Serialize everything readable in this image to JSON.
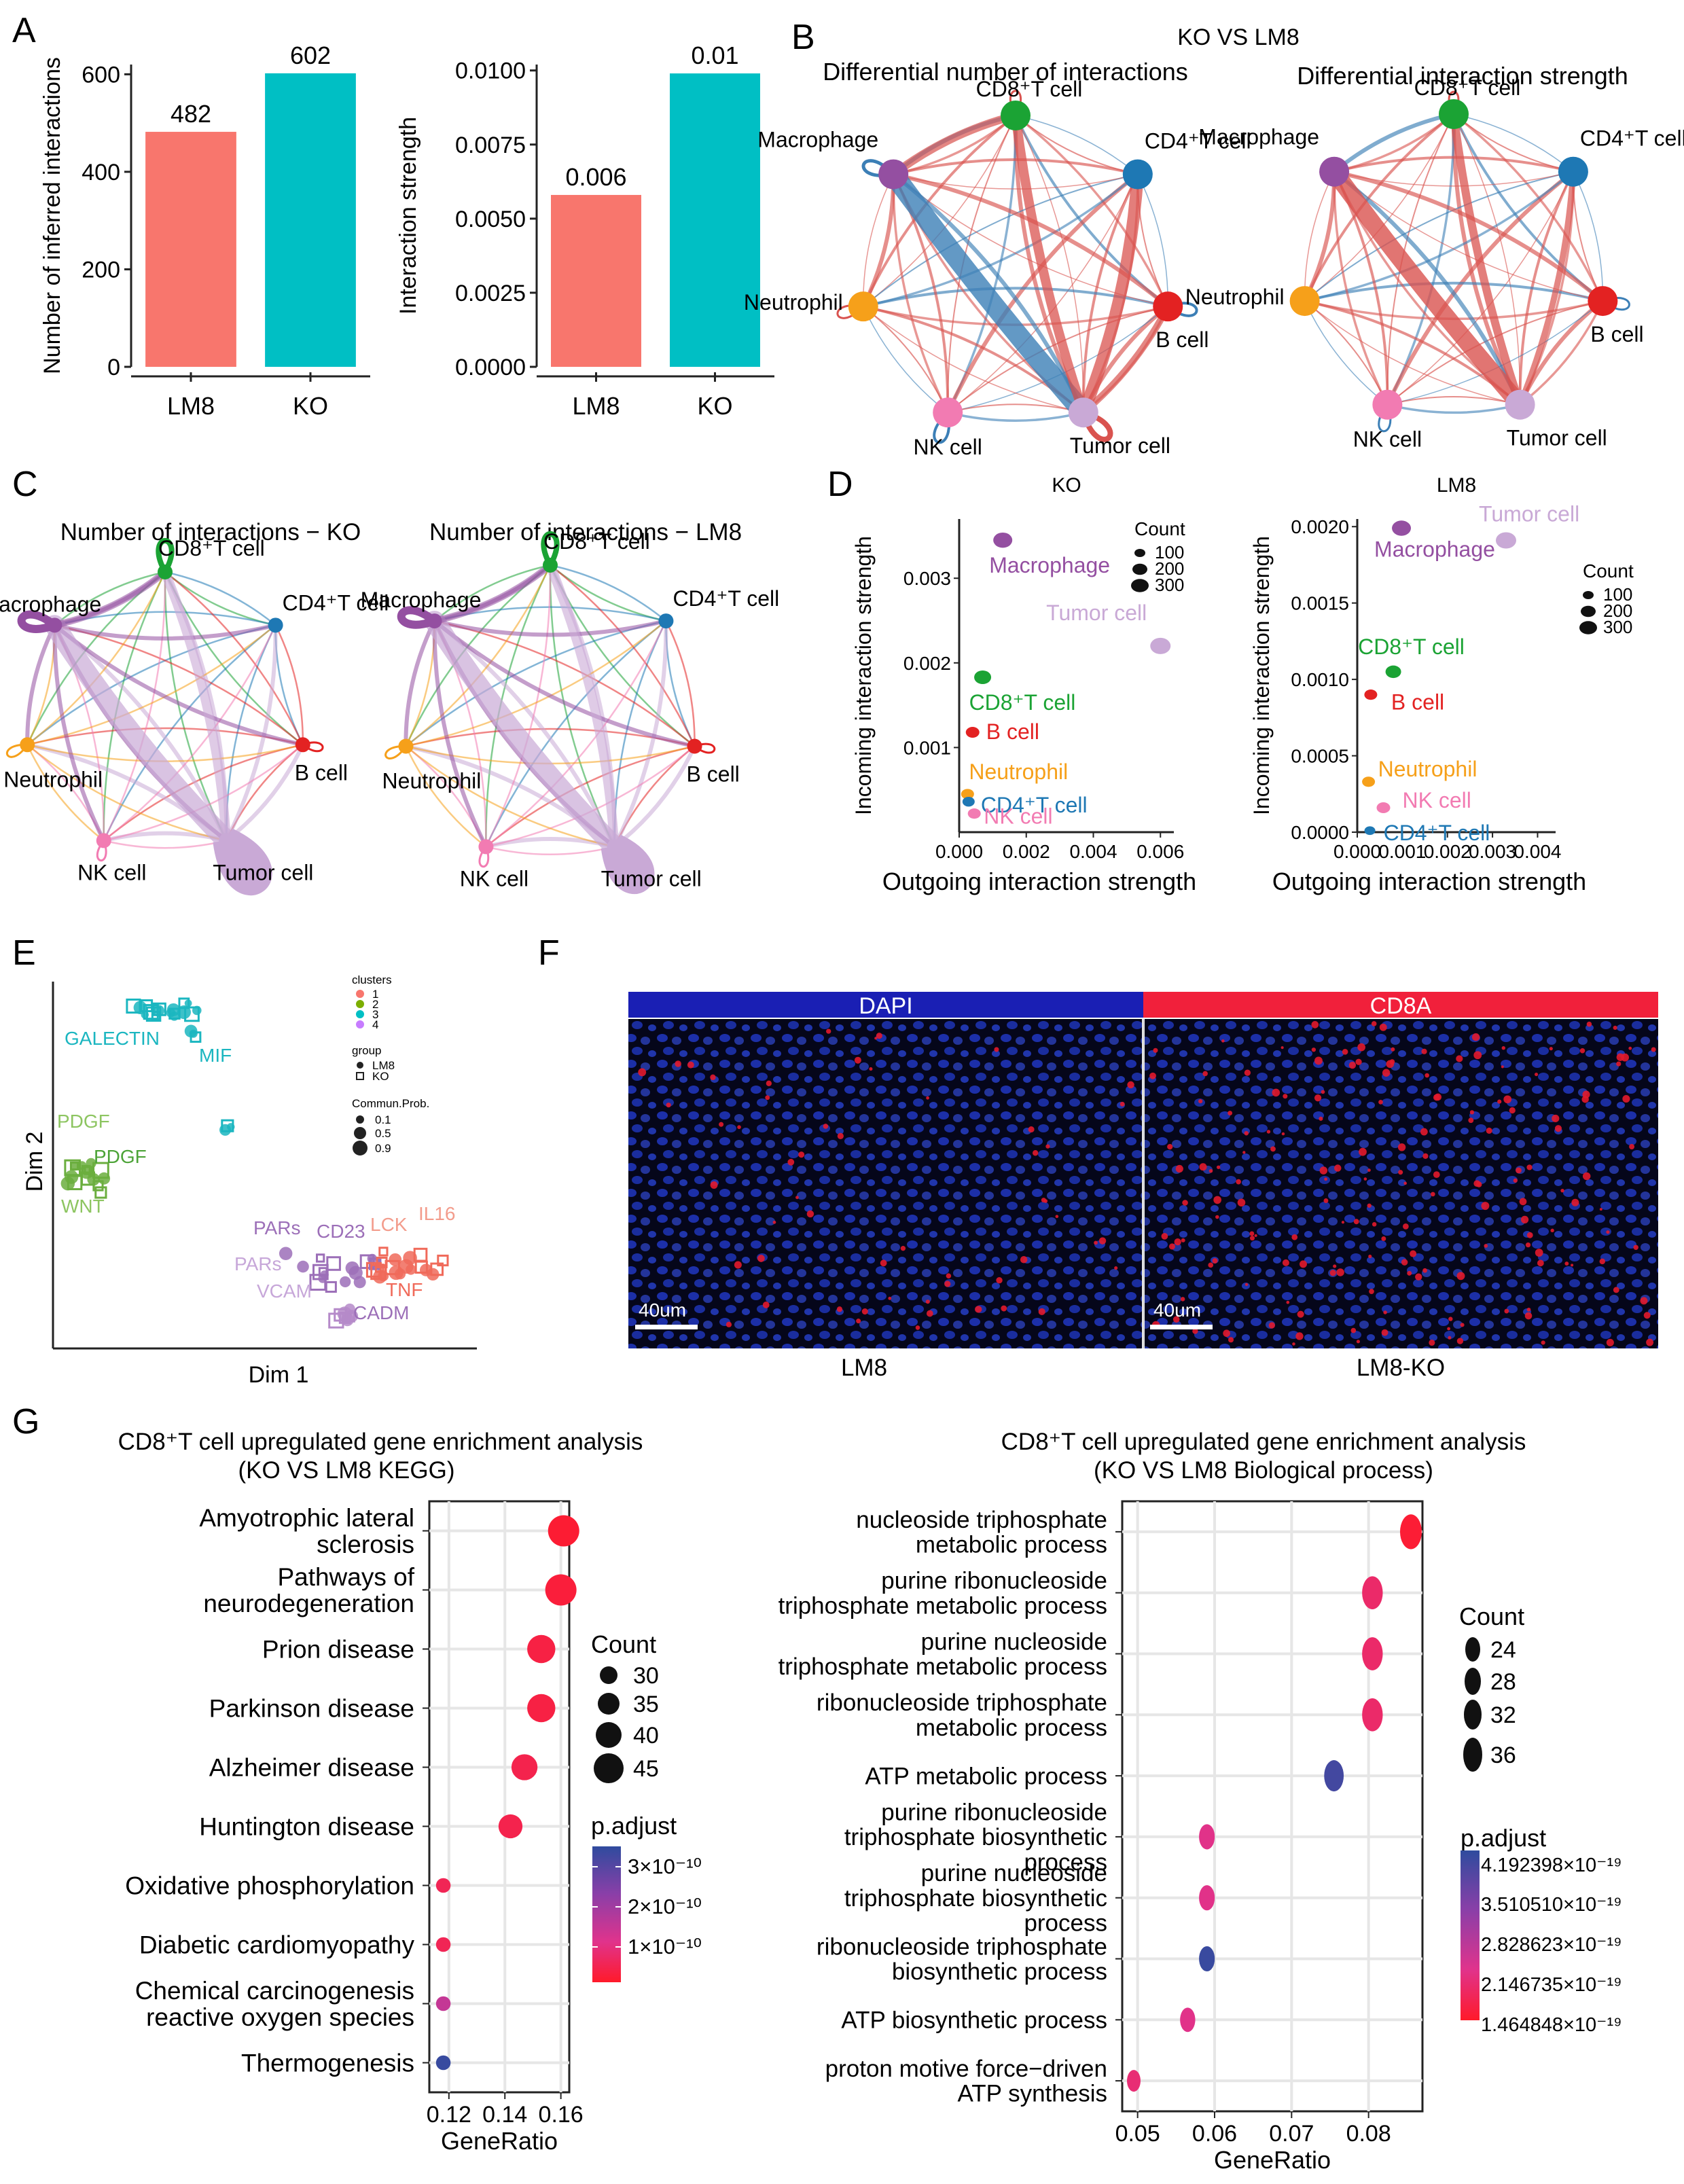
{
  "panels": {
    "A": "A",
    "B": "B",
    "C": "C",
    "D": "D",
    "E": "E",
    "F": "F",
    "G": "G"
  },
  "colors": {
    "lm8": "#F8766D",
    "ko": "#00BFC4",
    "increase": "#D9534F",
    "decrease": "#3C7FB6",
    "cd8": "#1BA334",
    "cd4": "#1E78B4",
    "bcell": "#E32222",
    "tumor": "#C9A9D6",
    "nk": "#F27BB2",
    "neutrophil": "#F6A01A",
    "macrophage": "#944FA1"
  },
  "cell_types": {
    "cd8": "CD8⁺T cell",
    "cd4": "CD4⁺T cell",
    "bcell": "B cell",
    "tumor": "Tumor cell",
    "nk": "NK cell",
    "neutrophil": "Neutrophil",
    "macrophage": "Macrophage"
  },
  "panel_b": {
    "title": "KO VS LM8",
    "left_title": "Differential number of interactions",
    "right_title": "Differential interaction strength"
  },
  "panel_c": {
    "left_title": "Number of interactions − KO",
    "right_title": "Number of interactions − LM8"
  },
  "panel_d": {
    "ko_title": "KO",
    "lm8_title": "LM8",
    "xlabel": "Outgoing interaction strength",
    "ylabel": "Incoming interaction strength",
    "legend_title": "Count",
    "legend_values": [
      "100",
      "200",
      "300"
    ]
  },
  "panel_e": {
    "xlabel": "Dim 1",
    "ylabel": "Dim 2",
    "legend_clusters_title": "clusters",
    "clusters": [
      "1",
      "2",
      "3",
      "4"
    ],
    "legend_group_title": "group",
    "groups": [
      "LM8",
      "KO"
    ],
    "legend_prob_title": "Commun.Prob.",
    "probs": [
      "0.1",
      "0.5",
      "0.9"
    ],
    "labels": [
      "GALECTIN",
      "MIF",
      "PDGF",
      "PDGF",
      "WNT",
      "PARs",
      "CD23",
      "LCK",
      "IL16",
      "PARs",
      "TNF",
      "VCAM",
      "CADM"
    ]
  },
  "panel_f": {
    "left_header": "DAPI",
    "right_header": "CD8A",
    "left_caption": "LM8",
    "right_caption": "LM8-KO",
    "scale_bar": "40um"
  },
  "panel_g": {
    "left_title_1": "CD8⁺T cell upregulated gene enrichment analysis",
    "left_title_2": "(KO VS LM8 KEGG)",
    "right_title_1": "CD8⁺T cell upregulated gene enrichment analysis",
    "right_title_2": "(KO VS LM8 Biological process)",
    "xlabel": "GeneRatio",
    "count_title": "Count",
    "padj_title": "p.adjust",
    "left_count_legend": [
      "30",
      "35",
      "40",
      "45"
    ],
    "left_padj_legend": [
      "3×10⁻¹⁰",
      "2×10⁻¹⁰",
      "1×10⁻¹⁰"
    ],
    "right_count_legend": [
      "24",
      "28",
      "32",
      "36"
    ],
    "right_padj_legend": [
      "4.192398×10⁻¹⁹",
      "3.510510×10⁻¹⁹",
      "2.828623×10⁻¹⁹",
      "2.146735×10⁻¹⁹",
      "1.464848×10⁻¹⁹"
    ]
  },
  "chart_data": [
    {
      "id": "A-left",
      "type": "bar",
      "categories": [
        "LM8",
        "KO"
      ],
      "values": [
        482,
        602
      ],
      "value_labels": [
        "482",
        "602"
      ],
      "ylabel": "Number of inferred interactions",
      "ylim": [
        0,
        620
      ],
      "yticks": [
        "0",
        "200",
        "400",
        "600"
      ],
      "ytick_values": [
        0,
        200,
        400,
        600
      ],
      "colors": [
        "#F8766D",
        "#00BFC4"
      ]
    },
    {
      "id": "A-right",
      "type": "bar",
      "categories": [
        "LM8",
        "KO"
      ],
      "values": [
        0.0058,
        0.0099
      ],
      "value_labels": [
        "0.006",
        "0.01"
      ],
      "ylabel": "Interaction strength",
      "ylim": [
        0,
        0.0102
      ],
      "yticks": [
        "0.0000",
        "0.0025",
        "0.0050",
        "0.0075",
        "0.0100"
      ],
      "ytick_values": [
        0,
        0.0025,
        0.005,
        0.0075,
        0.01
      ],
      "colors": [
        "#F8766D",
        "#00BFC4"
      ]
    },
    {
      "id": "D-KO",
      "type": "scatter",
      "xlabel": "Outgoing interaction strength",
      "ylabel": "Incoming interaction strength",
      "xlim": [
        0,
        0.0064
      ],
      "ylim": [
        0,
        0.0037
      ],
      "xticks": [
        "0.000",
        "0.002",
        "0.004",
        "0.006"
      ],
      "xtick_values": [
        0,
        0.002,
        0.004,
        0.006
      ],
      "yticks": [
        "0.001",
        "0.002",
        "0.003"
      ],
      "ytick_values": [
        0.001,
        0.002,
        0.003
      ],
      "points": [
        {
          "label": "Macrophage",
          "x": 0.0013,
          "y": 0.00345,
          "count": 200,
          "color": "#944FA1"
        },
        {
          "label": "Tumor cell",
          "x": 0.006,
          "y": 0.0022,
          "count": 220,
          "color": "#C9A9D6"
        },
        {
          "label": "CD8⁺T cell",
          "x": 0.0007,
          "y": 0.00183,
          "count": 170,
          "color": "#1BA334"
        },
        {
          "label": "B cell",
          "x": 0.0004,
          "y": 0.00118,
          "count": 120,
          "color": "#E32222"
        },
        {
          "label": "Neutrophil",
          "x": 0.00025,
          "y": 0.00045,
          "count": 110,
          "color": "#F6A01A"
        },
        {
          "label": "CD4⁺T cell",
          "x": 0.00028,
          "y": 0.00036,
          "count": 100,
          "color": "#1E78B4"
        },
        {
          "label": "NK cell",
          "x": 0.00045,
          "y": 0.00022,
          "count": 110,
          "color": "#F27BB2"
        }
      ]
    },
    {
      "id": "D-LM8",
      "type": "scatter",
      "xlabel": "Outgoing interaction strength",
      "ylabel": "Incoming interaction strength",
      "xlim": [
        0,
        0.0044
      ],
      "ylim": [
        0,
        0.00205
      ],
      "xticks": [
        "0.000",
        "0.001",
        "0.002",
        "0.003",
        "0.004"
      ],
      "xtick_values": [
        0,
        0.001,
        0.002,
        0.003,
        0.004
      ],
      "yticks": [
        "0.0000",
        "0.0005",
        "0.0010",
        "0.0015",
        "0.0020"
      ],
      "ytick_values": [
        0,
        0.0005,
        0.001,
        0.0015,
        0.002
      ],
      "points": [
        {
          "label": "Macrophage",
          "x": 0.00098,
          "y": 0.00199,
          "count": 200,
          "color": "#944FA1"
        },
        {
          "label": "Tumor cell",
          "x": 0.0033,
          "y": 0.00191,
          "count": 220,
          "color": "#C9A9D6"
        },
        {
          "label": "CD8⁺T cell",
          "x": 0.0008,
          "y": 0.00105,
          "count": 150,
          "color": "#1BA334"
        },
        {
          "label": "B cell",
          "x": 0.0003,
          "y": 0.0009,
          "count": 110,
          "color": "#E32222"
        },
        {
          "label": "Neutrophil",
          "x": 0.00025,
          "y": 0.00033,
          "count": 110,
          "color": "#F6A01A"
        },
        {
          "label": "NK cell",
          "x": 0.00058,
          "y": 0.00016,
          "count": 120,
          "color": "#F27BB2"
        },
        {
          "label": "CD4⁺T cell",
          "x": 0.00028,
          "y": 1e-05,
          "count": 80,
          "color": "#1E78B4"
        }
      ]
    },
    {
      "id": "G-KEGG",
      "type": "scatter",
      "xlabel": "GeneRatio",
      "xlim": [
        0.113,
        0.163
      ],
      "xticks": [
        "0.12",
        "0.14",
        "0.16"
      ],
      "xtick_values": [
        0.12,
        0.14,
        0.16
      ],
      "categories": [
        "Amyotrophic lateral\nsclerosis",
        "Pathways of\nneurodegeneration",
        "Prion disease",
        "Parkinson disease",
        "Alzheimer disease",
        "Huntington disease",
        "Oxidative phosphorylation",
        "Diabetic cardiomyopathy",
        "Chemical carcinogenesis\nreactive oxygen species",
        "Thermogenesis"
      ],
      "gene_ratio": [
        0.161,
        0.16,
        0.153,
        0.153,
        0.147,
        0.142,
        0.118,
        0.118,
        0.118,
        0.118
      ],
      "count": [
        47,
        47,
        44,
        44,
        42,
        40,
        31,
        31,
        31,
        31
      ],
      "p_adjust": [
        2e-11,
        3e-11,
        4e-11,
        4e-11,
        5e-11,
        5e-11,
        6e-11,
        6e-11,
        1.6e-10,
        3.4e-10
      ]
    },
    {
      "id": "G-BP",
      "type": "scatter",
      "xlabel": "GeneRatio",
      "xlim": [
        0.048,
        0.087
      ],
      "xticks": [
        "0.05",
        "0.06",
        "0.07",
        "0.08"
      ],
      "xtick_values": [
        0.05,
        0.06,
        0.07,
        0.08
      ],
      "categories": [
        "nucleoside triphosphate\nmetabolic process",
        "purine ribonucleoside\ntriphosphate metabolic process",
        "purine nucleoside\ntriphosphate metabolic process",
        "ribonucleoside triphosphate\nmetabolic process",
        "ATP metabolic process",
        "purine ribonucleoside\ntriphosphate biosynthetic\nprocess",
        "purine nucleoside\ntriphosphate biosynthetic\nprocess",
        "ribonucleoside triphosphate\nbiosynthetic process",
        "ATP biosynthetic process",
        "proton motive force−driven\nATP synthesis"
      ],
      "gene_ratio": [
        0.0855,
        0.0805,
        0.0805,
        0.0805,
        0.0755,
        0.059,
        0.059,
        0.059,
        0.0565,
        0.0495
      ],
      "count": [
        37,
        35,
        35,
        35,
        33,
        26,
        26,
        26,
        25,
        22
      ],
      "p_adjust": [
        1.5e-19,
        2e-19,
        2e-19,
        2e-19,
        4e-19,
        2.3e-19,
        2.3e-19,
        4.1e-19,
        2.3e-19,
        2.1e-19
      ]
    }
  ]
}
